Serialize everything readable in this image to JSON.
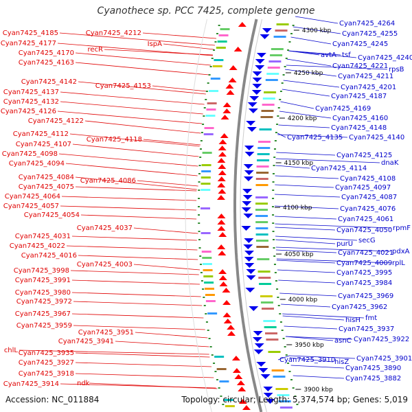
{
  "title": "Cyanothece sp. PCC 7425, complete genome",
  "accession": "Accession: NC_011884",
  "stats": "Topology: circular; Length: 5,374,574 bp; Genes: 5,019",
  "colors": {
    "left_genes": "#e00000",
    "right_genes": "#0000cc",
    "backbone": "#888888",
    "tick_marks": "#2e8b2e"
  },
  "ticks": [
    "4300 kbp",
    "4250 kbp",
    "4200 kbp",
    "4150 kbp",
    "4100 kbp",
    "4050 kbp",
    "4000 kbp",
    "3950 kbp",
    "3900 kbp"
  ],
  "left_labels": [
    "Cyan7425_4185",
    "Cyan7425_4177",
    "Cyan7425_4170",
    "Cyan7425_4163",
    "Cyan7425_4142",
    "Cyan7425_4137",
    "Cyan7425_4132",
    "Cyan7425_4126",
    "Cyan7425_4122",
    "Cyan7425_4112",
    "Cyan7425_4107",
    "Cyan7425_4098",
    "Cyan7425_4094",
    "Cyan7425_4084",
    "Cyan7425_4075",
    "Cyan7425_4064",
    "Cyan7425_4057",
    "Cyan7425_4054",
    "Cyan7425_4031",
    "Cyan7425_4022",
    "Cyan7425_4016",
    "Cyan7425_3998",
    "Cyan7425_3991",
    "Cyan7425_3980",
    "Cyan7425_3972",
    "Cyan7425_3967",
    "Cyan7425_3959",
    "chlL",
    "Cyan7425_3935",
    "Cyan7425_3927",
    "Cyan7425_3918",
    "Cyan7425_3914"
  ],
  "mid_left_labels": [
    "Cyan7425_4212",
    "recR",
    "IspA",
    "Cyan7425_4153",
    "Cyan7425_4118",
    "Cyan7425_4086",
    "Cyan7425_4037",
    "Cyan7425_4003",
    "Cyan7425_3951",
    "Cyan7425_3941",
    "ndk"
  ],
  "right_labels": [
    "Cyan7425_4264",
    "Cyan7425_4255",
    "Cyan7425_4245",
    "Cyan7425_4240",
    "Cyan7425_4221",
    "Cyan7425_4211",
    "Cyan7425_4201",
    "Cyan7425_4187",
    "Cyan7425_4169",
    "Cyan7425_4160",
    "Cyan7425_4148",
    "Cyan7425_4140",
    "Cyan7425_4125",
    "Cyan7425_4114",
    "Cyan7425_4108",
    "Cyan7425_4097",
    "Cyan7425_4087",
    "Cyan7425_4076",
    "Cyan7425_4061",
    "Cyan7425_4050",
    "Cyan7425_4021",
    "Cyan7425_4009",
    "Cyan7425_3995",
    "Cyan7425_3984",
    "Cyan7425_3969",
    "Cyan7425_3962",
    "Cyan7425_3937",
    "Cyan7425_3922",
    "Cyan7425_3901",
    "Cyan7425_3890",
    "Cyan7425_3882"
  ],
  "right_short_labels": [
    "avtA",
    "tsf",
    "rpsB",
    "Cyan7425_4135",
    "dnaK",
    "rpmF",
    "secG",
    "purU",
    "pdxA",
    "rplL",
    "fmt",
    "hisH",
    "asnC",
    "Cyan7425_3910",
    "hisZ"
  ]
}
